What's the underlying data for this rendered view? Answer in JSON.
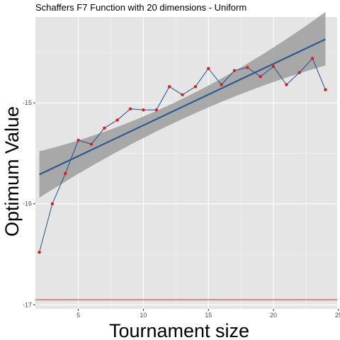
{
  "chart_data": {
    "type": "line",
    "title": "Schaffers F7 Function with 20 dimensions -  Uniform",
    "xlabel": "Tournament size",
    "ylabel": "Optimum Value",
    "xlim": [
      1.7,
      24.9
    ],
    "ylim": [
      -17.04,
      -14.15
    ],
    "x_ticks": [
      5,
      10,
      15,
      20,
      25
    ],
    "y_ticks": [
      -17,
      -16,
      -15
    ],
    "grid": true,
    "legend": "none",
    "series": [
      {
        "type": "line+points",
        "x": [
          2,
          3,
          4,
          5,
          6,
          7,
          8,
          9,
          10,
          11,
          12,
          13,
          14,
          15,
          16,
          17,
          18,
          19,
          20,
          21,
          22,
          23,
          24
        ],
        "y": [
          -16.48,
          -16.0,
          -15.7,
          -15.37,
          -15.41,
          -15.25,
          -15.17,
          -15.06,
          -15.07,
          -15.07,
          -14.84,
          -14.92,
          -14.84,
          -14.66,
          -14.82,
          -14.68,
          -14.65,
          -14.74,
          -14.64,
          -14.82,
          -14.7,
          -14.56,
          -14.87
        ]
      },
      {
        "type": "smooth-linear",
        "x_range": [
          2,
          24
        ],
        "fit_start": -15.71,
        "fit_end": -14.37,
        "band_start": [
          -15.94,
          -15.48
        ],
        "band_mid": [
          -15.16,
          -14.96
        ],
        "band_end": [
          -14.63,
          -14.1
        ]
      },
      {
        "type": "hline",
        "y": -16.95
      }
    ],
    "colors": {
      "panel": "#e5e5e5",
      "grid_major": "#ffffff",
      "point": "#e31a1c",
      "line": "#1f4e8c",
      "fit": "#2c5a92",
      "band": "#999999",
      "hline": "#ff2a2a"
    }
  }
}
